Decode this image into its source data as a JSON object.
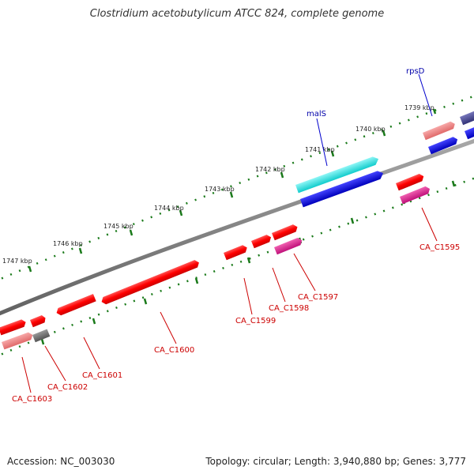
{
  "title": "Clostridium acetobutylicum ATCC 824, complete genome",
  "footer": {
    "accession": "Accession: NC_003030",
    "topology": "Topology: circular; Length: 3,940,880 bp; Genes: 3,777"
  },
  "ticks": [
    "1739 kbp",
    "1740 kbp",
    "1741 kbp",
    "1742 kbp",
    "1743 kbp",
    "1744 kbp",
    "1745 kbp",
    "1746 kbp",
    "1747 kbp"
  ],
  "gene_labels": {
    "rpsD": "rpsD",
    "malS": "malS",
    "CA_C1595": "CA_C1595",
    "CA_C1597": "CA_C1597",
    "CA_C1598": "CA_C1598",
    "CA_C1599": "CA_C1599",
    "CA_C1600": "CA_C1600",
    "CA_C1601": "CA_C1601",
    "CA_C1602": "CA_C1602",
    "CA_C1603": "CA_C1603"
  },
  "colors": {
    "backbone": "#808080",
    "tick": "#1a7a1a",
    "red": "#ff0000",
    "salmon": "#f08080",
    "magenta": "#e0208a",
    "grey": "#666666",
    "cyan": "#2ee6e6",
    "blue": "#0000ee",
    "navy": "#4a4a9a"
  }
}
